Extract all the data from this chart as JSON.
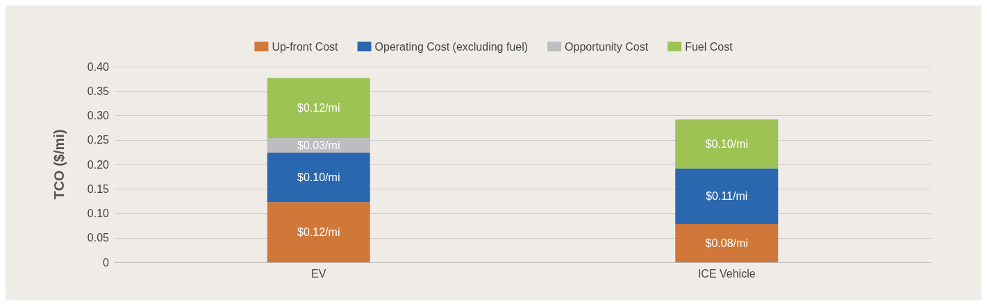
{
  "chart_data": {
    "type": "bar",
    "stacked": true,
    "ylabel": "TCO ($/mi)",
    "categories": [
      "EV",
      "ICE Vehicle"
    ],
    "series": [
      {
        "name": "Up-front Cost",
        "color": "#d0783a",
        "values": [
          0.123,
          0.078
        ],
        "value_labels": [
          "$0.12/mi",
          "$0.08/mi"
        ]
      },
      {
        "name": "Operating Cost (excluding fuel)",
        "color": "#2a67ae",
        "values": [
          0.101,
          0.114
        ],
        "value_labels": [
          "$0.10/mi",
          "$0.11/mi"
        ]
      },
      {
        "name": "Opportunity Cost",
        "color": "#bcbdbf",
        "values": [
          0.03,
          null
        ],
        "value_labels": [
          "$0.03/mi",
          null
        ]
      },
      {
        "name": "Fuel Cost",
        "color": "#9cc354",
        "values": [
          0.123,
          0.1
        ],
        "value_labels": [
          "$0.12/mi",
          "$0.10/mi"
        ]
      }
    ],
    "ylim": [
      0,
      0.4
    ],
    "yticks": [
      0,
      {
        "value": 0.05,
        "label": "0.05"
      },
      {
        "value": 0.1,
        "label": "0.10"
      },
      {
        "value": 0.15,
        "label": "0.15"
      },
      {
        "value": 0.2,
        "label": "0.20"
      },
      {
        "value": 0.25,
        "label": "0.25"
      },
      {
        "value": 0.3,
        "label": "0.30"
      },
      {
        "value": 0.35,
        "label": "0.35"
      },
      {
        "value": 0.4,
        "label": "0.40"
      }
    ],
    "grid": "y",
    "legend": "top"
  }
}
